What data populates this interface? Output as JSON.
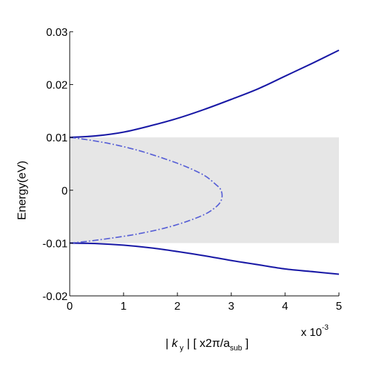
{
  "chart_data": {
    "type": "line",
    "title": "",
    "xlabel": {
      "prefix": "| ",
      "k": "k",
      "sub_y": "y",
      "middle": " | [ x2π/a",
      "sub_sub": "sub",
      "suffix": " ]"
    },
    "ylabel": "Energy(eV)",
    "x_multiplier": {
      "base": "x 10",
      "exponent": "-3"
    },
    "xlim": [
      0,
      5
    ],
    "ylim": [
      -0.02,
      0.03
    ],
    "xticks": [
      0,
      1,
      2,
      3,
      4,
      5
    ],
    "xtick_labels": [
      "0",
      "1",
      "2",
      "3",
      "4",
      "5"
    ],
    "yticks": [
      -0.02,
      -0.01,
      0,
      0.01,
      0.02,
      0.03
    ],
    "ytick_labels": [
      "-0.02",
      "-0.01",
      "0",
      "0.01",
      "0.02",
      "0.03"
    ],
    "grid": false,
    "band_gap_region": {
      "y_min": -0.01,
      "y_max": 0.01,
      "color": "#e6e6e6"
    },
    "series": [
      {
        "style": "solid",
        "color": "#1a1aa6",
        "x": [
          0,
          0.5,
          1,
          1.5,
          2,
          2.5,
          3,
          3.5,
          4,
          4.5,
          5
        ],
        "y": [
          0.01,
          0.0103,
          0.011,
          0.0122,
          0.0136,
          0.0153,
          0.0172,
          0.0192,
          0.0216,
          0.024,
          0.0265
        ]
      },
      {
        "style": "solid",
        "color": "#1a1aa6",
        "x": [
          0,
          0.5,
          1,
          1.5,
          2,
          2.5,
          3,
          3.5,
          4,
          4.5,
          5
        ],
        "y": [
          -0.01,
          -0.0101,
          -0.0104,
          -0.0109,
          -0.0116,
          -0.0124,
          -0.0133,
          -0.0141,
          -0.0149,
          -0.0154,
          -0.0159
        ]
      },
      {
        "style": "dashdot",
        "color": "#5a62d6",
        "x": [
          0,
          0.3,
          0.75,
          1.25,
          1.75,
          2.15,
          2.5,
          2.7,
          2.8,
          2.83,
          2.8,
          2.7,
          2.5,
          2.15,
          1.75,
          1.25,
          0.75,
          0.3,
          0
        ],
        "y": [
          0.01,
          0.0096,
          0.0088,
          0.0076,
          0.006,
          0.0045,
          0.0028,
          0.0012,
          0.0002,
          -0.001,
          -0.0022,
          -0.0033,
          -0.0046,
          -0.006,
          -0.0072,
          -0.0083,
          -0.0091,
          -0.0097,
          -0.01
        ]
      }
    ]
  }
}
